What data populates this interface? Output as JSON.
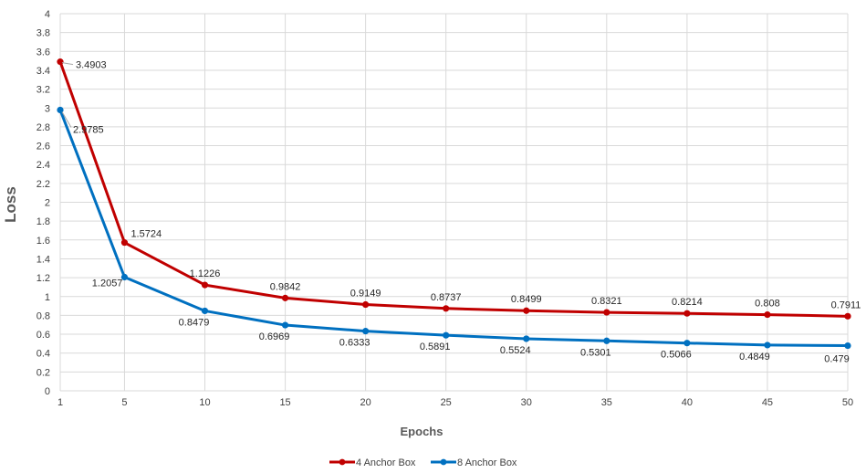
{
  "chart_data": {
    "type": "line",
    "title": "",
    "xlabel": "Epochs",
    "ylabel": "Loss",
    "x": [
      1,
      5,
      10,
      15,
      20,
      25,
      30,
      35,
      40,
      45,
      50
    ],
    "x_tick_labels": [
      "1",
      "5",
      "10",
      "15",
      "20",
      "25",
      "30",
      "35",
      "40",
      "45",
      "50"
    ],
    "ylim": [
      0,
      4
    ],
    "y_tick_labels": [
      "0",
      "0.2",
      "0.4",
      "0.6",
      "0.8",
      "1",
      "1.2",
      "1.4",
      "1.6",
      "1.8",
      "2",
      "2.2",
      "2.4",
      "2.6",
      "2.8",
      "3",
      "3.2",
      "3.4",
      "3.6",
      "3.8",
      "4"
    ],
    "grid": true,
    "legend_position": "bottom",
    "series": [
      {
        "name": "4 Anchor Box",
        "color": "#C00000",
        "values": [
          3.4903,
          1.5724,
          1.1226,
          0.9842,
          0.9149,
          0.8737,
          0.8499,
          0.8321,
          0.8214,
          0.808,
          0.7911
        ],
        "data_labels": [
          "3.4903",
          "1.5724",
          "1.1226",
          "0.9842",
          "0.9149",
          "0.8737",
          "0.8499",
          "0.8321",
          "0.8214",
          "0.808",
          "0.7911"
        ]
      },
      {
        "name": "8 Anchor Box",
        "color": "#0070C0",
        "values": [
          2.9785,
          1.2057,
          0.8479,
          0.6969,
          0.6333,
          0.5891,
          0.5524,
          0.5301,
          0.5066,
          0.4849,
          0.479
        ],
        "data_labels": [
          "2.9785",
          "1.2057",
          "0.8479",
          "0.6969",
          "0.6333",
          "0.5891",
          "0.5524",
          "0.5301",
          "0.5066",
          "0.4849",
          "0.479"
        ]
      }
    ]
  }
}
